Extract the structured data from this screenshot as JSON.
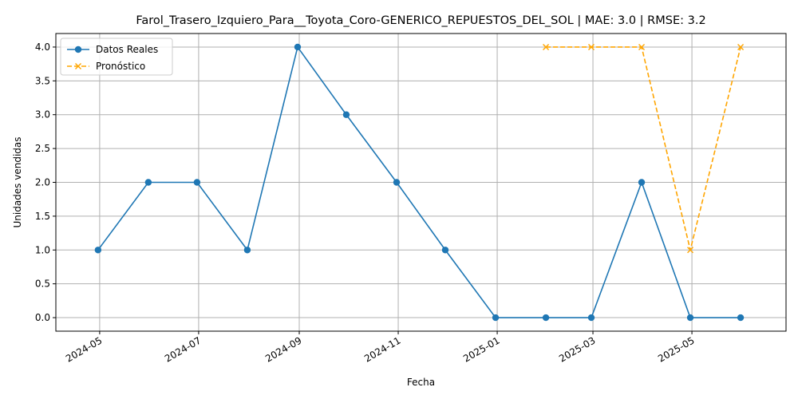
{
  "chart_data": {
    "type": "line",
    "title": "Farol_Trasero_Izquiero_Para__Toyota_Coro-GENERICO_REPUESTOS_DEL_SOL | MAE: 3.0 | RMSE: 3.2",
    "xlabel": "Fecha",
    "ylabel": "Unidades vendidas",
    "x_type": "date",
    "xlim": [
      "2024-04-04",
      "2025-06-28"
    ],
    "ylim": [
      -0.2,
      4.2
    ],
    "x_ticks": [
      {
        "date": "2024-05-01",
        "label": "2024-05"
      },
      {
        "date": "2024-07-01",
        "label": "2024-07"
      },
      {
        "date": "2024-09-01",
        "label": "2024-09"
      },
      {
        "date": "2024-11-01",
        "label": "2024-11"
      },
      {
        "date": "2025-01-01",
        "label": "2025-01"
      },
      {
        "date": "2025-03-01",
        "label": "2025-03"
      },
      {
        "date": "2025-05-01",
        "label": "2025-05"
      }
    ],
    "y_ticks": [
      {
        "value": 0.0,
        "label": "0.0"
      },
      {
        "value": 0.5,
        "label": "0.5"
      },
      {
        "value": 1.0,
        "label": "1.0"
      },
      {
        "value": 1.5,
        "label": "1.5"
      },
      {
        "value": 2.0,
        "label": "2.0"
      },
      {
        "value": 2.5,
        "label": "2.5"
      },
      {
        "value": 3.0,
        "label": "3.0"
      },
      {
        "value": 3.5,
        "label": "3.5"
      },
      {
        "value": 4.0,
        "label": "4.0"
      }
    ],
    "grid": true,
    "legend_position": "top-left",
    "series": [
      {
        "name": "Datos Reales",
        "color": "#1f77b4",
        "marker": "circle",
        "line_style": "solid",
        "points": [
          {
            "x": "2024-04-30",
            "y": 1
          },
          {
            "x": "2024-05-31",
            "y": 2
          },
          {
            "x": "2024-06-30",
            "y": 2
          },
          {
            "x": "2024-07-31",
            "y": 1
          },
          {
            "x": "2024-08-31",
            "y": 4
          },
          {
            "x": "2024-09-30",
            "y": 3
          },
          {
            "x": "2024-10-31",
            "y": 2
          },
          {
            "x": "2024-11-30",
            "y": 1
          },
          {
            "x": "2024-12-31",
            "y": 0
          },
          {
            "x": "2025-01-31",
            "y": 0
          },
          {
            "x": "2025-02-28",
            "y": 0
          },
          {
            "x": "2025-03-31",
            "y": 2
          },
          {
            "x": "2025-04-30",
            "y": 0
          },
          {
            "x": "2025-05-31",
            "y": 0
          }
        ]
      },
      {
        "name": "Pronóstico",
        "color": "#ffa500",
        "marker": "x",
        "line_style": "dashed",
        "points": [
          {
            "x": "2025-01-31",
            "y": 4
          },
          {
            "x": "2025-02-28",
            "y": 4
          },
          {
            "x": "2025-03-31",
            "y": 4
          },
          {
            "x": "2025-04-30",
            "y": 1
          },
          {
            "x": "2025-05-31",
            "y": 4
          }
        ]
      }
    ]
  }
}
